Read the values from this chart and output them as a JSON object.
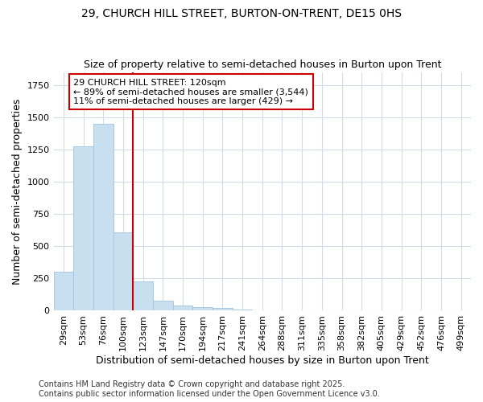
{
  "title": "29, CHURCH HILL STREET, BURTON-ON-TRENT, DE15 0HS",
  "subtitle": "Size of property relative to semi-detached houses in Burton upon Trent",
  "xlabel": "Distribution of semi-detached houses by size in Burton upon Trent",
  "ylabel": "Number of semi-detached properties",
  "categories": [
    "29sqm",
    "53sqm",
    "76sqm",
    "100sqm",
    "123sqm",
    "147sqm",
    "170sqm",
    "194sqm",
    "217sqm",
    "241sqm",
    "264sqm",
    "288sqm",
    "311sqm",
    "335sqm",
    "358sqm",
    "382sqm",
    "405sqm",
    "429sqm",
    "452sqm",
    "476sqm",
    "499sqm"
  ],
  "values": [
    305,
    1275,
    1450,
    610,
    225,
    80,
    42,
    30,
    20,
    10,
    5,
    5,
    5,
    0,
    0,
    0,
    0,
    0,
    0,
    0,
    0
  ],
  "bar_color": "#c8dff0",
  "bar_edge_color": "#a0c4e0",
  "property_line_index": 4,
  "property_line_color": "#cc0000",
  "annotation_title": "29 CHURCH HILL STREET: 120sqm",
  "annotation_line1": "← 89% of semi-detached houses are smaller (3,544)",
  "annotation_line2": "11% of semi-detached houses are larger (429) →",
  "annotation_box_color": "#cc0000",
  "ylim": [
    0,
    1850
  ],
  "footer_line1": "Contains HM Land Registry data © Crown copyright and database right 2025.",
  "footer_line2": "Contains public sector information licensed under the Open Government Licence v3.0.",
  "background_color": "#ffffff",
  "grid_color": "#d0dce8",
  "title_fontsize": 10,
  "subtitle_fontsize": 9,
  "ylabel_fontsize": 9,
  "xlabel_fontsize": 9,
  "tick_fontsize": 8,
  "footer_fontsize": 7
}
